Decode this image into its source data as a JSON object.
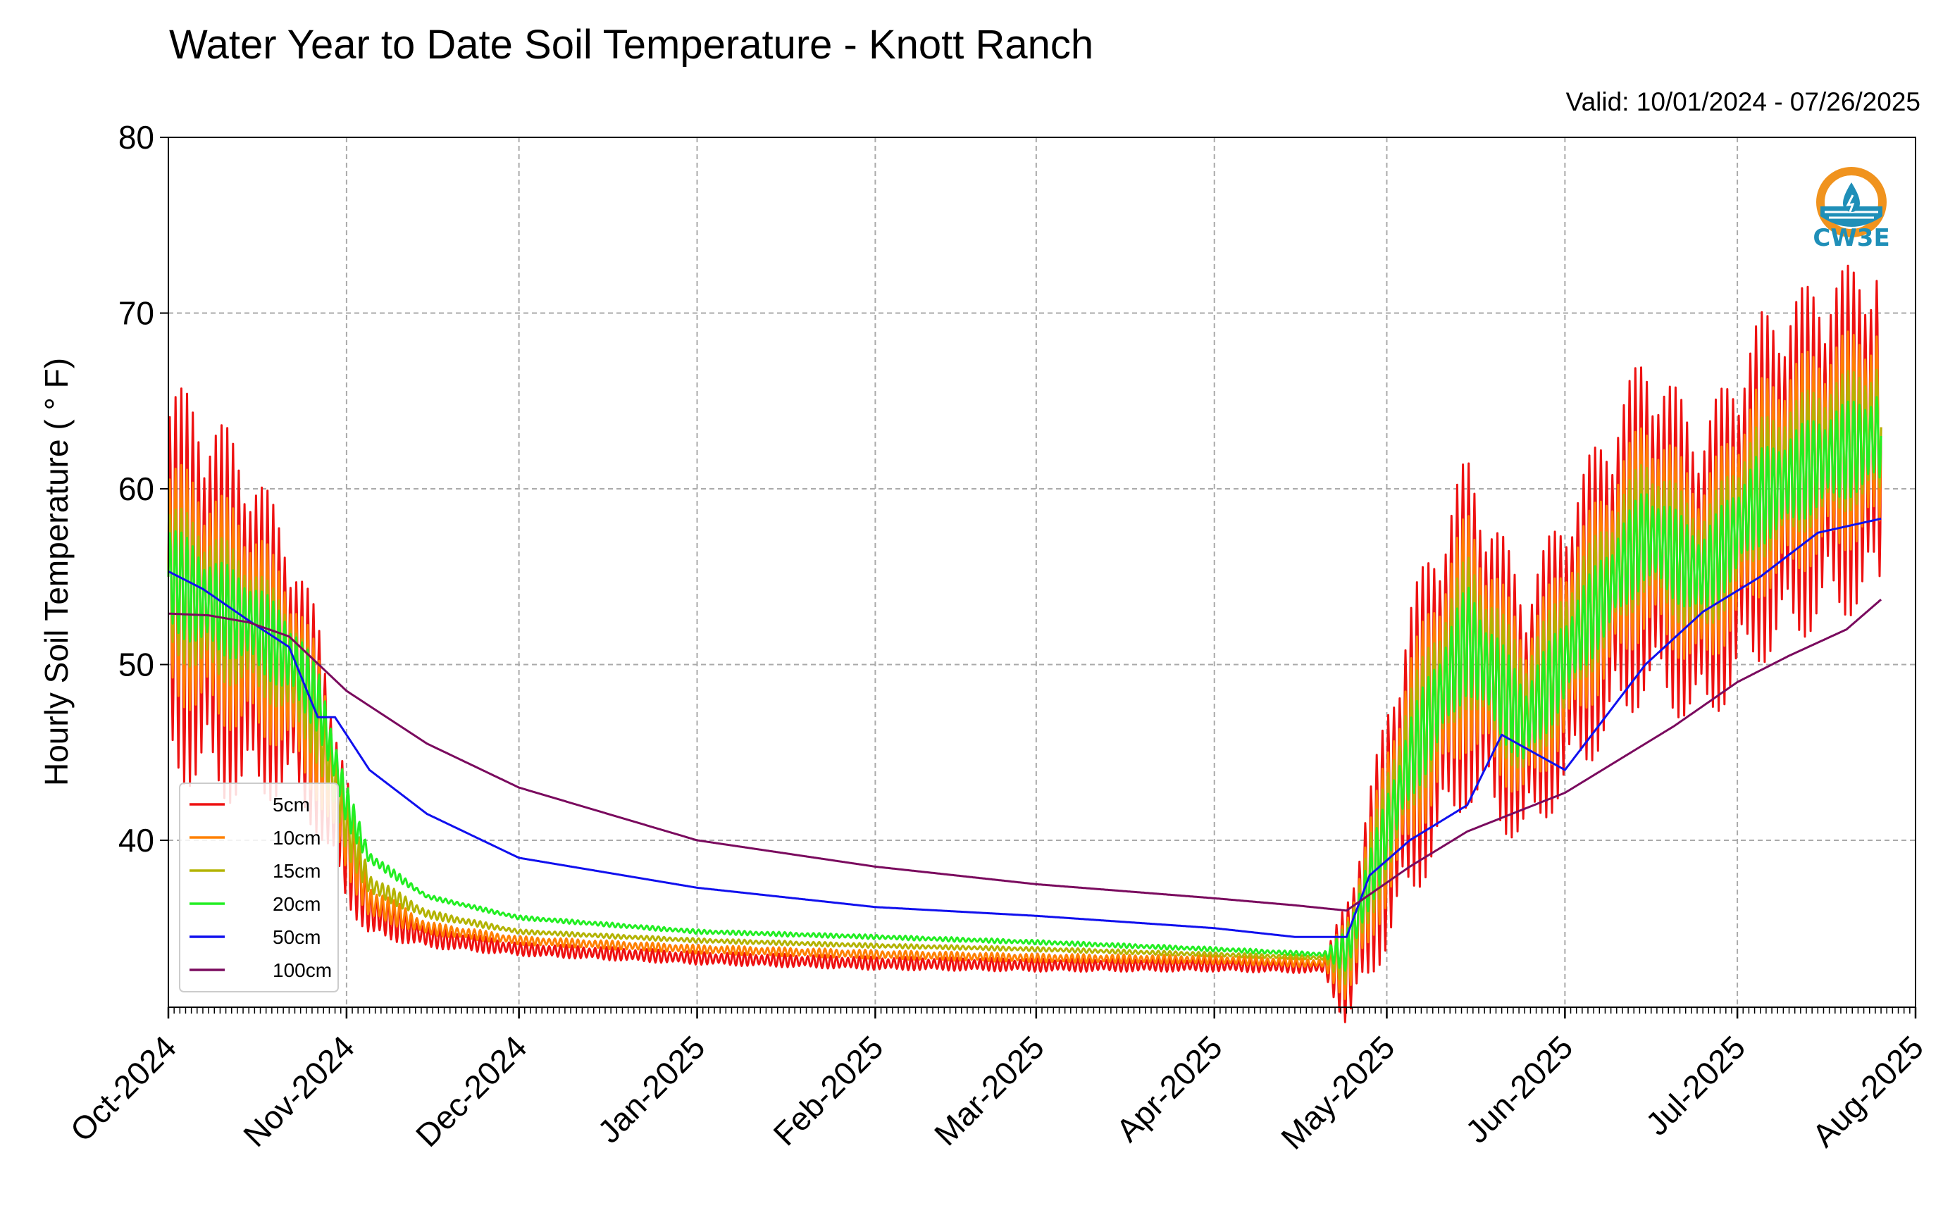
{
  "chart_data": {
    "type": "line",
    "title": "Water Year to Date Soil Temperature - Knott Ranch",
    "subtitle": "Valid: 10/01/2024 - 07/26/2025",
    "ylabel": "Hourly Soil Temperature ( ° F)",
    "xlabel": "",
    "xlim": [
      "2024-10-01",
      "2025-08-01"
    ],
    "ylim": [
      30.5,
      80
    ],
    "yticks": [
      40,
      50,
      60,
      70,
      80
    ],
    "xticks": [
      {
        "date": "2024-10-01",
        "label": "Oct-2024"
      },
      {
        "date": "2024-11-01",
        "label": "Nov-2024"
      },
      {
        "date": "2024-12-01",
        "label": "Dec-2024"
      },
      {
        "date": "2025-01-01",
        "label": "Jan-2025"
      },
      {
        "date": "2025-02-01",
        "label": "Feb-2025"
      },
      {
        "date": "2025-03-01",
        "label": "Mar-2025"
      },
      {
        "date": "2025-04-01",
        "label": "Apr-2025"
      },
      {
        "date": "2025-05-01",
        "label": "May-2025"
      },
      {
        "date": "2025-06-01",
        "label": "Jun-2025"
      },
      {
        "date": "2025-07-01",
        "label": "Jul-2025"
      },
      {
        "date": "2025-08-01",
        "label": "Aug-2025"
      }
    ],
    "grid": true,
    "legend_position": "lower-left",
    "series": [
      {
        "name": "5cm",
        "color": "#ee1111",
        "x": [
          "2024-10-01",
          "2024-10-08",
          "2024-10-15",
          "2024-10-22",
          "2024-10-27",
          "2024-11-01",
          "2024-11-05",
          "2024-11-15",
          "2024-12-01",
          "2025-01-01",
          "2025-02-01",
          "2025-03-01",
          "2025-04-01",
          "2025-04-20",
          "2025-04-24",
          "2025-05-05",
          "2025-05-15",
          "2025-05-25",
          "2025-06-05",
          "2025-06-15",
          "2025-06-25",
          "2025-07-05",
          "2025-07-15",
          "2025-07-26"
        ],
        "y": [
          55.0,
          53.5,
          52.0,
          50.0,
          46.5,
          40.0,
          36.0,
          34.5,
          33.8,
          33.3,
          33.0,
          32.9,
          32.9,
          32.8,
          33.0,
          45.0,
          52.0,
          47.0,
          53.0,
          58.0,
          55.0,
          60.0,
          62.0,
          63.5
        ],
        "amp": [
          9,
          9,
          8,
          6,
          5,
          3,
          1.2,
          0.5,
          0.3,
          0.3,
          0.3,
          0.3,
          0.3,
          0.3,
          3,
          7,
          8,
          6,
          7,
          8,
          7,
          8,
          8,
          8
        ]
      },
      {
        "name": "10cm",
        "color": "#ff8000",
        "x": [
          "2024-10-01",
          "2024-10-08",
          "2024-10-15",
          "2024-10-22",
          "2024-10-27",
          "2024-11-01",
          "2024-11-05",
          "2024-11-15",
          "2024-12-01",
          "2025-01-01",
          "2025-02-01",
          "2025-03-01",
          "2025-04-01",
          "2025-04-20",
          "2025-04-24",
          "2025-05-05",
          "2025-05-15",
          "2025-05-25",
          "2025-06-05",
          "2025-06-15",
          "2025-06-25",
          "2025-07-05",
          "2025-07-15",
          "2025-07-26"
        ],
        "y": [
          55.0,
          53.5,
          52.2,
          50.0,
          46.5,
          40.5,
          36.5,
          35.0,
          34.3,
          33.8,
          33.5,
          33.3,
          33.2,
          33.0,
          33.2,
          45.0,
          52.0,
          47.0,
          53.0,
          58.0,
          55.0,
          60.0,
          62.0,
          63.5
        ],
        "amp": [
          5.5,
          5.5,
          5,
          4,
          3.5,
          2,
          0.8,
          0.3,
          0.2,
          0.2,
          0.2,
          0.2,
          0.2,
          0.2,
          2,
          4.5,
          5.5,
          4,
          4.5,
          5,
          4.5,
          5,
          5,
          5
        ]
      },
      {
        "name": "15cm",
        "color": "#b3b300",
        "x": [
          "2024-10-01",
          "2024-10-08",
          "2024-10-15",
          "2024-10-22",
          "2024-10-27",
          "2024-11-01",
          "2024-11-05",
          "2024-11-15",
          "2024-12-01",
          "2025-01-01",
          "2025-02-01",
          "2025-03-01",
          "2025-04-01",
          "2025-04-20",
          "2025-04-24",
          "2025-05-05",
          "2025-05-15",
          "2025-05-25",
          "2025-06-05",
          "2025-06-15",
          "2025-06-25",
          "2025-07-05",
          "2025-07-15",
          "2025-07-26"
        ],
        "y": [
          55.0,
          53.5,
          52.3,
          50.2,
          47.0,
          41.0,
          37.5,
          35.8,
          34.8,
          34.3,
          34.0,
          33.8,
          33.5,
          33.3,
          33.5,
          45.0,
          52.0,
          47.0,
          53.0,
          58.0,
          55.0,
          60.0,
          62.0,
          63.5
        ],
        "amp": [
          3.5,
          3.5,
          3,
          2.5,
          2.2,
          1.5,
          0.5,
          0.2,
          0.1,
          0.1,
          0.1,
          0.1,
          0.1,
          0.1,
          1.5,
          3,
          3.5,
          3,
          3,
          3.2,
          3,
          3.2,
          3.2,
          3.2
        ]
      },
      {
        "name": "20cm",
        "color": "#22ee22",
        "x": [
          "2024-10-01",
          "2024-10-08",
          "2024-10-15",
          "2024-10-22",
          "2024-10-27",
          "2024-11-01",
          "2024-11-05",
          "2024-11-15",
          "2024-12-01",
          "2025-01-01",
          "2025-02-01",
          "2025-03-01",
          "2025-04-01",
          "2025-04-20",
          "2025-04-24",
          "2025-05-05",
          "2025-05-15",
          "2025-05-25",
          "2025-06-05",
          "2025-06-15",
          "2025-06-25",
          "2025-07-05",
          "2025-07-15",
          "2025-07-26"
        ],
        "y": [
          55.0,
          53.5,
          52.5,
          50.5,
          48.0,
          42.0,
          39.0,
          36.8,
          35.6,
          34.8,
          34.5,
          34.2,
          33.8,
          33.5,
          33.7,
          44.5,
          51.5,
          46.5,
          52.5,
          57.5,
          55.0,
          59.5,
          61.5,
          63.0
        ],
        "amp": [
          2.5,
          2.2,
          2,
          1.8,
          1.5,
          1,
          0.3,
          0.1,
          0.1,
          0.1,
          0.1,
          0.1,
          0.1,
          0.1,
          1,
          2,
          2.5,
          2,
          2,
          2.2,
          2,
          2.2,
          2.2,
          2.2
        ]
      },
      {
        "name": "50cm",
        "color": "#1010ee",
        "x": [
          "2024-10-01",
          "2024-10-07",
          "2024-10-15",
          "2024-10-22",
          "2024-10-27",
          "2024-10-30",
          "2024-11-05",
          "2024-11-15",
          "2024-12-01",
          "2025-01-01",
          "2025-02-01",
          "2025-03-01",
          "2025-04-01",
          "2025-04-15",
          "2025-04-24",
          "2025-04-28",
          "2025-05-05",
          "2025-05-15",
          "2025-05-21",
          "2025-06-01",
          "2025-06-08",
          "2025-06-15",
          "2025-06-25",
          "2025-07-05",
          "2025-07-15",
          "2025-07-26"
        ],
        "y": [
          55.3,
          54.3,
          52.5,
          51.0,
          47.0,
          47.0,
          44.0,
          41.5,
          39.0,
          37.3,
          36.2,
          35.7,
          35.0,
          34.5,
          34.5,
          38.0,
          40.0,
          42.0,
          46.0,
          44.0,
          47.0,
          50.0,
          53.0,
          55.0,
          57.5,
          58.3
        ],
        "amp": [
          0
        ]
      },
      {
        "name": "100cm",
        "color": "#7a0a5e",
        "x": [
          "2024-10-01",
          "2024-10-08",
          "2024-10-15",
          "2024-10-22",
          "2024-11-01",
          "2024-11-15",
          "2024-12-01",
          "2025-01-01",
          "2025-02-01",
          "2025-03-01",
          "2025-04-01",
          "2025-04-15",
          "2025-04-24",
          "2025-05-05",
          "2025-05-15",
          "2025-06-01",
          "2025-06-10",
          "2025-06-20",
          "2025-07-01",
          "2025-07-10",
          "2025-07-20",
          "2025-07-26"
        ],
        "y": [
          52.9,
          52.8,
          52.4,
          51.6,
          48.5,
          45.5,
          43.0,
          40.0,
          38.5,
          37.5,
          36.7,
          36.3,
          36.0,
          38.5,
          40.5,
          42.7,
          44.5,
          46.5,
          49.0,
          50.5,
          52.0,
          53.7
        ],
        "amp": [
          0
        ]
      }
    ]
  },
  "logo": {
    "text": "CW3E",
    "color": "#1f8fb8",
    "ring_color": "#f0931e"
  }
}
